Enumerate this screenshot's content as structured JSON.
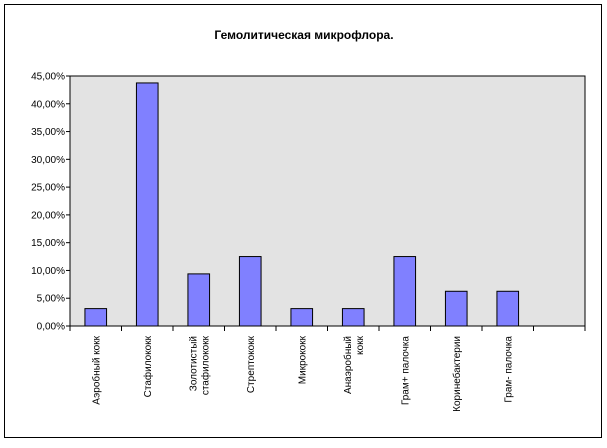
{
  "chart_data": {
    "type": "bar",
    "title": "Гемолитическая микрофлора.",
    "xlabel": "",
    "ylabel": "",
    "categories": [
      [
        "Аэробный кокк"
      ],
      [
        "Стафилококк"
      ],
      [
        "Золотистый",
        "стафилококк"
      ],
      [
        "Стрептококк"
      ],
      [
        "Микрококк"
      ],
      [
        "Анаэробный",
        "кокк"
      ],
      [
        "Грам+ палочка"
      ],
      [
        "Коринебактерии"
      ],
      [
        "Грам- палочка"
      ],
      [
        ""
      ]
    ],
    "values": [
      3.13,
      43.75,
      9.38,
      12.5,
      3.13,
      3.13,
      12.5,
      6.25,
      6.25,
      null
    ],
    "ylim": [
      0,
      45
    ],
    "yticks": [
      0,
      5,
      10,
      15,
      20,
      25,
      30,
      35,
      40,
      45
    ],
    "ytick_labels": [
      "0,00%",
      "5,00%",
      "10,00%",
      "15,00%",
      "20,00%",
      "25,00%",
      "30,00%",
      "35,00%",
      "40,00%",
      "45,00%"
    ],
    "grid": false,
    "legend": "none",
    "colors": {
      "bar_fill": "#8080ff",
      "bar_stroke": "#000000",
      "plot_background": "#e3e3e3",
      "frame": "#000000"
    }
  }
}
